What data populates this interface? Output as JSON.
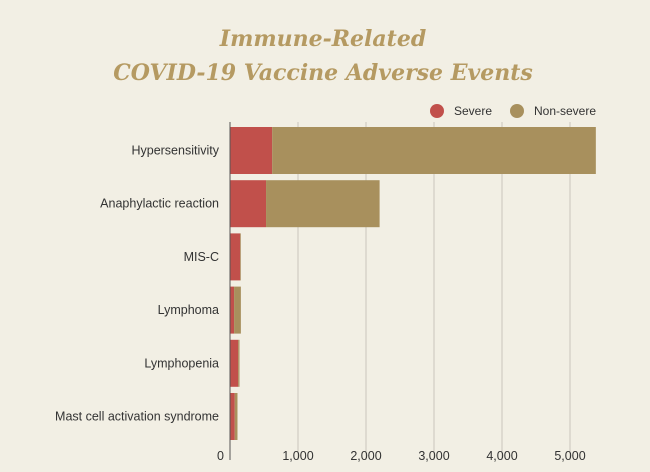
{
  "chart_data": {
    "type": "bar",
    "orientation": "horizontal",
    "stacked": true,
    "title_lines": [
      "Immune-Related",
      "COVID-19 Vaccine Adverse Events"
    ],
    "xlabel": "",
    "ylabel": "",
    "categories": [
      "Hypersensitivity",
      "Anaphylactic reaction",
      "MIS-C",
      "Lymphoma",
      "Lymphopenia",
      "Mast cell activation syndrome"
    ],
    "series": [
      {
        "name": "Severe",
        "color": "#c1504b",
        "values": [
          620,
          530,
          150,
          60,
          120,
          70
        ]
      },
      {
        "name": "Non-severe",
        "color": "#a8905d",
        "values": [
          4760,
          1670,
          10,
          100,
          20,
          40
        ]
      }
    ],
    "xlim": [
      0,
      5500
    ],
    "xticks": [
      0,
      1000,
      2000,
      3000,
      4000,
      5000
    ],
    "xtick_labels": [
      "0",
      "1,000",
      "2,000",
      "3,000",
      "4,000",
      "5,000"
    ],
    "grid": true,
    "legend_position": "top-right"
  }
}
